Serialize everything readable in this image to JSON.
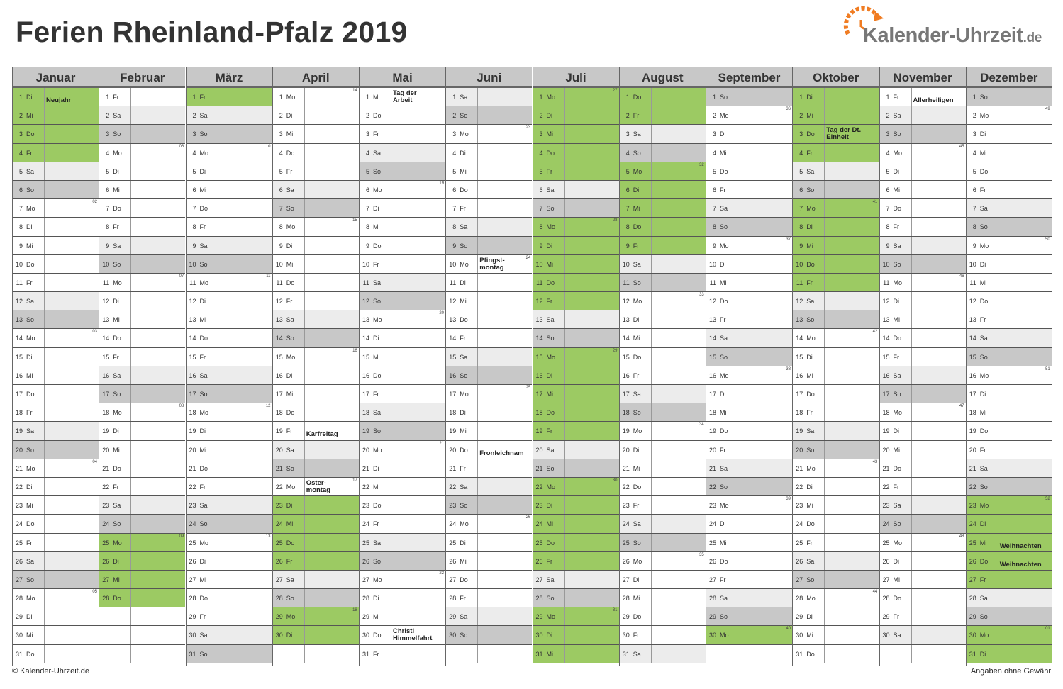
{
  "title": "Ferien Rheinland-Pfalz 2019",
  "logo": {
    "name": "Kalender-Uhrzeit",
    "tld": ".de",
    "icon": "clock-arrow-icon",
    "accent": "#f07c22",
    "text_color": "#777777"
  },
  "colors": {
    "holiday": "#9cca63",
    "saturday": "#ececec",
    "sunday": "#c8c8c8",
    "header": "#c8c8c8"
  },
  "footer": {
    "left": "© Kalender-Uhrzeit.de",
    "right": "Angaben ohne Gewähr"
  },
  "months": [
    {
      "name": "Januar",
      "start_weekday": 1,
      "days": 31,
      "vacation": [
        1,
        2,
        3,
        4
      ],
      "week_marks": {
        "7": "02",
        "14": "03",
        "21": "04",
        "28": "05"
      },
      "holidays": {
        "1": "Neujahr"
      }
    },
    {
      "name": "Februar",
      "start_weekday": 4,
      "days": 28,
      "vacation": [
        25,
        26,
        27,
        28
      ],
      "week_marks": {
        "4": "06",
        "11": "07",
        "18": "08",
        "25": "09"
      },
      "holidays": {}
    },
    {
      "name": "März",
      "start_weekday": 4,
      "days": 31,
      "vacation": [
        1
      ],
      "week_marks": {
        "4": "10",
        "11": "11",
        "18": "12",
        "25": "13"
      },
      "holidays": {}
    },
    {
      "name": "April",
      "start_weekday": 0,
      "days": 30,
      "vacation": [
        23,
        24,
        25,
        26,
        29,
        30
      ],
      "week_marks": {
        "1": "14",
        "8": "15",
        "15": "16",
        "22": "17",
        "29": "18"
      },
      "holidays": {
        "19": "Karfreitag",
        "22": "Oster-\nmontag"
      }
    },
    {
      "name": "Mai",
      "start_weekday": 2,
      "days": 31,
      "vacation": [],
      "week_marks": {
        "6": "19",
        "13": "20",
        "20": "21",
        "27": "22"
      },
      "holidays": {
        "1": "Tag der\nArbeit",
        "30": "Christi\nHimmelfahrt"
      }
    },
    {
      "name": "Juni",
      "start_weekday": 5,
      "days": 30,
      "vacation": [],
      "week_marks": {
        "3": "23",
        "10": "24",
        "17": "25",
        "24": "26"
      },
      "holidays": {
        "10": "Pfingst-\nmontag",
        "20": "Fronleichnam"
      }
    },
    {
      "name": "Juli",
      "start_weekday": 0,
      "days": 31,
      "vacation": [
        1,
        2,
        3,
        4,
        5,
        8,
        9,
        10,
        11,
        12,
        15,
        16,
        17,
        18,
        19,
        22,
        23,
        24,
        25,
        26,
        29,
        30,
        31
      ],
      "week_marks": {
        "1": "27",
        "8": "28",
        "15": "29",
        "22": "30",
        "29": "31"
      },
      "holidays": {}
    },
    {
      "name": "August",
      "start_weekday": 3,
      "days": 31,
      "vacation": [
        1,
        2,
        5,
        6,
        7,
        8,
        9
      ],
      "week_marks": {
        "5": "32",
        "12": "33",
        "19": "34",
        "26": "35"
      },
      "holidays": {}
    },
    {
      "name": "September",
      "start_weekday": 6,
      "days": 30,
      "vacation": [
        30
      ],
      "week_marks": {
        "2": "36",
        "9": "37",
        "16": "38",
        "23": "39",
        "30": "40"
      },
      "holidays": {}
    },
    {
      "name": "Oktober",
      "start_weekday": 1,
      "days": 31,
      "vacation": [
        1,
        2,
        3,
        4,
        7,
        8,
        9,
        10,
        11
      ],
      "week_marks": {
        "7": "41",
        "14": "42",
        "21": "43",
        "28": "44"
      },
      "holidays": {
        "3": "Tag der Dt.\nEinheit"
      }
    },
    {
      "name": "November",
      "start_weekday": 4,
      "days": 30,
      "vacation": [],
      "week_marks": {
        "4": "45",
        "11": "46",
        "18": "47",
        "25": "48"
      },
      "holidays": {
        "1": "Allerheiligen"
      }
    },
    {
      "name": "Dezember",
      "start_weekday": 6,
      "days": 31,
      "vacation": [
        23,
        24,
        25,
        26,
        27,
        30,
        31
      ],
      "week_marks": {
        "2": "49",
        "9": "50",
        "16": "51",
        "23": "52",
        "30": "01"
      },
      "holidays": {
        "25": "Weihnachten",
        "26": "Weihnachten"
      }
    }
  ],
  "weekday_abbr": [
    "Mo",
    "Di",
    "Mi",
    "Do",
    "Fr",
    "Sa",
    "So"
  ]
}
